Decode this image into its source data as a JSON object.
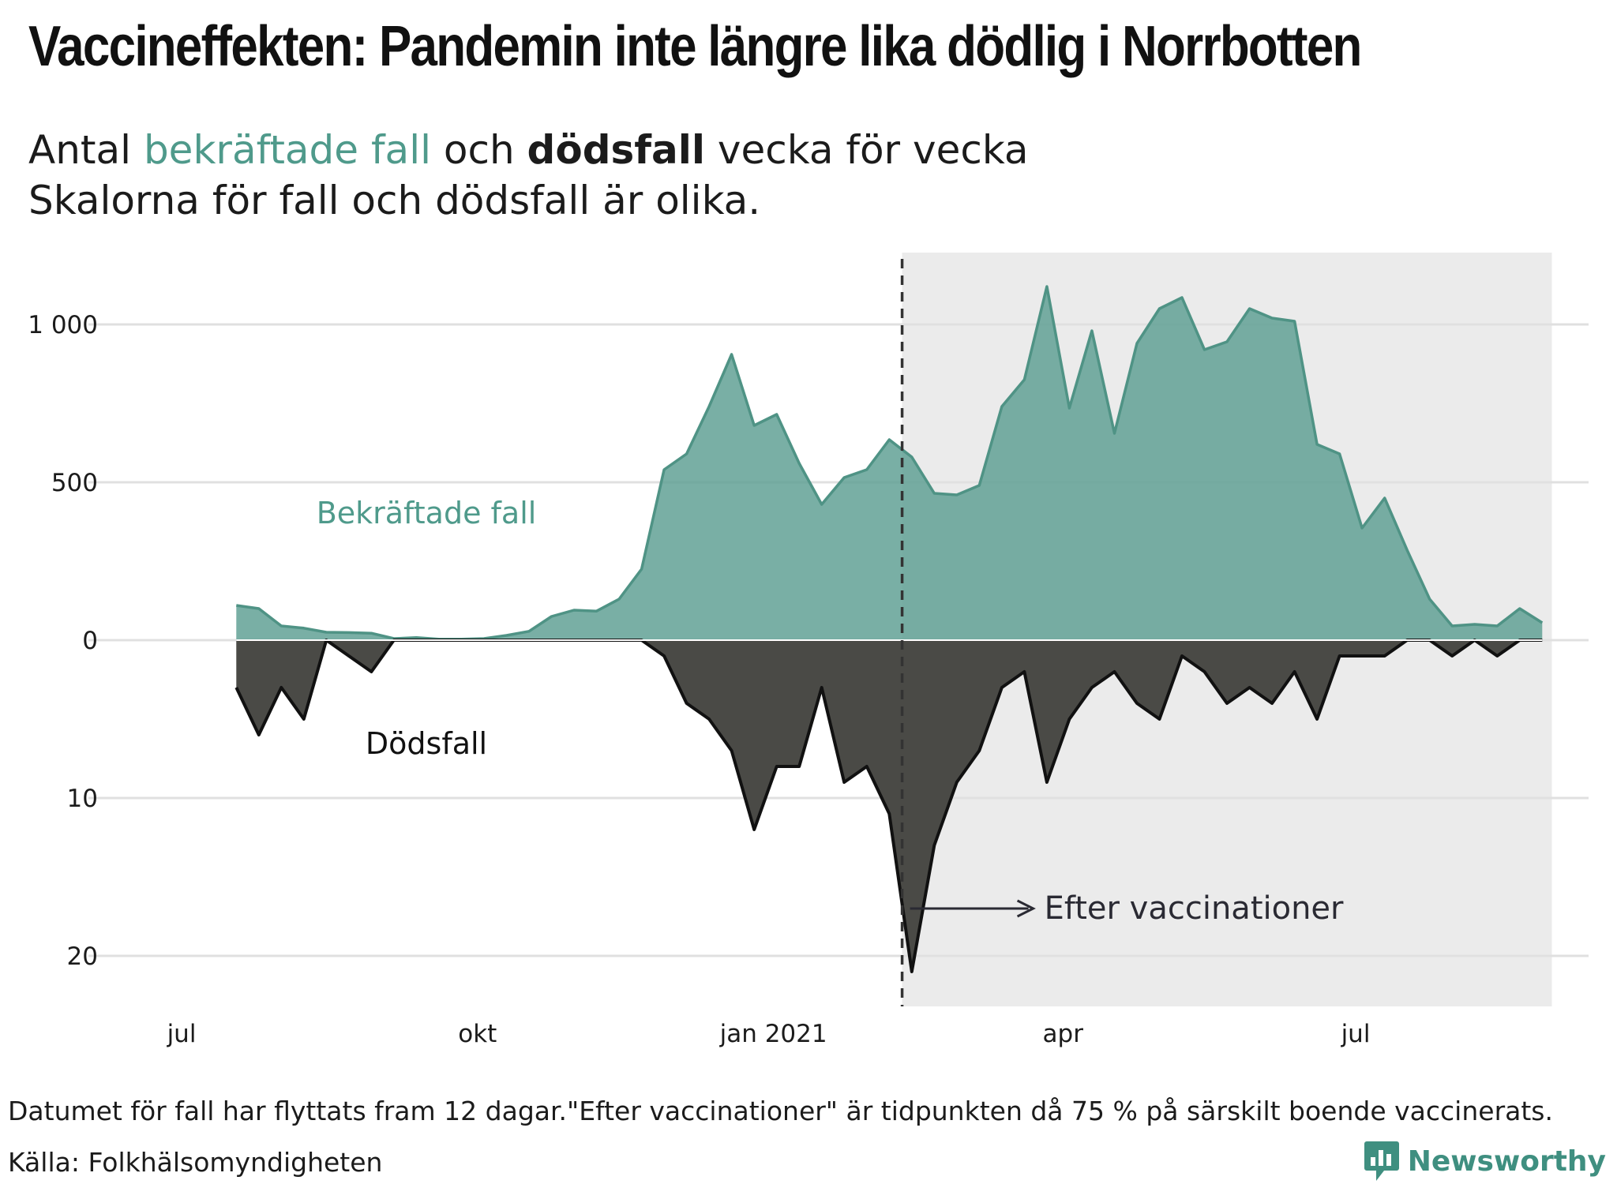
{
  "title": "Vaccineffekten: Pandemin inte längre lika dödlig i Norrbotten",
  "subtitle": {
    "line1": {
      "prefix": "Antal ",
      "cases": "bekräftade fall",
      "middle": " och ",
      "deaths": "dödsfall",
      "suffix": " vecka för vecka"
    },
    "line2": "Skalorna för fall och dödsfall är olika."
  },
  "chart_data": {
    "type": "area",
    "x_axis": {
      "type": "date",
      "ticks": [
        {
          "date": "2020-07-01",
          "label": "jul"
        },
        {
          "date": "2020-10-01",
          "label": "okt"
        },
        {
          "date": "2021-01-01",
          "label": "jan 2021"
        },
        {
          "date": "2021-04-01",
          "label": "apr"
        },
        {
          "date": "2021-07-01",
          "label": "jul"
        }
      ]
    },
    "cases_axis": {
      "ticks": [
        0,
        500,
        1000
      ],
      "tick_labels": [
        "0",
        "500",
        "1 000"
      ],
      "range": [
        0,
        1200
      ]
    },
    "deaths_axis": {
      "ticks": [
        10,
        20
      ],
      "tick_labels": [
        "10",
        "20"
      ],
      "range": [
        0,
        23
      ],
      "direction": "downward"
    },
    "grid": true,
    "series": [
      {
        "name": "Bekräftade fall",
        "color": "#5b9e91",
        "values": [
          [
            "2020-07-18",
            110
          ],
          [
            "2020-07-25",
            100
          ],
          [
            "2020-08-01",
            45
          ],
          [
            "2020-08-08",
            38
          ],
          [
            "2020-08-15",
            25
          ],
          [
            "2020-08-22",
            24
          ],
          [
            "2020-08-29",
            22
          ],
          [
            "2020-09-05",
            5
          ],
          [
            "2020-09-12",
            8
          ],
          [
            "2020-09-19",
            3
          ],
          [
            "2020-09-26",
            3
          ],
          [
            "2020-10-03",
            5
          ],
          [
            "2020-10-10",
            15
          ],
          [
            "2020-10-17",
            28
          ],
          [
            "2020-10-24",
            75
          ],
          [
            "2020-10-31",
            95
          ],
          [
            "2020-11-07",
            92
          ],
          [
            "2020-11-14",
            130
          ],
          [
            "2020-11-21",
            225
          ],
          [
            "2020-11-28",
            540
          ],
          [
            "2020-12-05",
            590
          ],
          [
            "2020-12-12",
            740
          ],
          [
            "2020-12-19",
            905
          ],
          [
            "2020-12-26",
            680
          ],
          [
            "2021-01-02",
            715
          ],
          [
            "2021-01-09",
            560
          ],
          [
            "2021-01-16",
            430
          ],
          [
            "2021-01-23",
            515
          ],
          [
            "2021-01-30",
            540
          ],
          [
            "2021-02-06",
            635
          ],
          [
            "2021-02-13",
            580
          ],
          [
            "2021-02-20",
            465
          ],
          [
            "2021-02-27",
            460
          ],
          [
            "2021-03-06",
            490
          ],
          [
            "2021-03-13",
            740
          ],
          [
            "2021-03-20",
            825
          ],
          [
            "2021-03-27",
            1120
          ],
          [
            "2021-04-03",
            735
          ],
          [
            "2021-04-10",
            980
          ],
          [
            "2021-04-17",
            655
          ],
          [
            "2021-04-24",
            940
          ],
          [
            "2021-05-01",
            1050
          ],
          [
            "2021-05-08",
            1085
          ],
          [
            "2021-05-15",
            920
          ],
          [
            "2021-05-22",
            945
          ],
          [
            "2021-05-29",
            1050
          ],
          [
            "2021-06-05",
            1020
          ],
          [
            "2021-06-12",
            1010
          ],
          [
            "2021-06-19",
            620
          ],
          [
            "2021-06-26",
            590
          ],
          [
            "2021-07-03",
            355
          ],
          [
            "2021-07-10",
            450
          ],
          [
            "2021-07-17",
            285
          ],
          [
            "2021-07-24",
            130
          ],
          [
            "2021-07-31",
            45
          ],
          [
            "2021-08-07",
            50
          ],
          [
            "2021-08-14",
            45
          ],
          [
            "2021-08-21",
            100
          ],
          [
            "2021-08-28",
            55
          ]
        ]
      },
      {
        "name": "Dödsfall",
        "color": "#4a4a46",
        "values": [
          [
            "2020-07-18",
            3
          ],
          [
            "2020-07-25",
            6
          ],
          [
            "2020-08-01",
            3
          ],
          [
            "2020-08-08",
            5
          ],
          [
            "2020-08-15",
            0
          ],
          [
            "2020-08-22",
            1
          ],
          [
            "2020-08-29",
            2
          ],
          [
            "2020-09-05",
            0
          ],
          [
            "2020-09-12",
            0
          ],
          [
            "2020-09-19",
            0
          ],
          [
            "2020-09-26",
            0
          ],
          [
            "2020-10-03",
            0
          ],
          [
            "2020-10-10",
            0
          ],
          [
            "2020-10-17",
            0
          ],
          [
            "2020-10-24",
            0
          ],
          [
            "2020-10-31",
            0
          ],
          [
            "2020-11-07",
            0
          ],
          [
            "2020-11-14",
            0
          ],
          [
            "2020-11-21",
            0
          ],
          [
            "2020-11-28",
            1
          ],
          [
            "2020-12-05",
            4
          ],
          [
            "2020-12-12",
            5
          ],
          [
            "2020-12-19",
            7
          ],
          [
            "2020-12-26",
            12
          ],
          [
            "2021-01-02",
            8
          ],
          [
            "2021-01-09",
            8
          ],
          [
            "2021-01-16",
            3
          ],
          [
            "2021-01-23",
            9
          ],
          [
            "2021-01-30",
            8
          ],
          [
            "2021-02-06",
            11
          ],
          [
            "2021-02-13",
            21
          ],
          [
            "2021-02-20",
            13
          ],
          [
            "2021-02-27",
            9
          ],
          [
            "2021-03-06",
            7
          ],
          [
            "2021-03-13",
            3
          ],
          [
            "2021-03-20",
            2
          ],
          [
            "2021-03-27",
            9
          ],
          [
            "2021-04-03",
            5
          ],
          [
            "2021-04-10",
            3
          ],
          [
            "2021-04-17",
            2
          ],
          [
            "2021-04-24",
            4
          ],
          [
            "2021-05-01",
            5
          ],
          [
            "2021-05-08",
            1
          ],
          [
            "2021-05-15",
            2
          ],
          [
            "2021-05-22",
            4
          ],
          [
            "2021-05-29",
            3
          ],
          [
            "2021-06-05",
            4
          ],
          [
            "2021-06-12",
            2
          ],
          [
            "2021-06-19",
            5
          ],
          [
            "2021-06-26",
            1
          ],
          [
            "2021-07-03",
            1
          ],
          [
            "2021-07-10",
            1
          ],
          [
            "2021-07-17",
            0
          ],
          [
            "2021-07-24",
            0
          ],
          [
            "2021-07-31",
            1
          ],
          [
            "2021-08-07",
            0
          ],
          [
            "2021-08-14",
            1
          ],
          [
            "2021-08-21",
            0
          ],
          [
            "2021-08-28",
            0
          ]
        ]
      }
    ],
    "annotations": [
      {
        "type": "vertical-line",
        "date": "2021-02-10",
        "style": "dashed"
      },
      {
        "type": "shaded-region",
        "from": "2021-02-10",
        "to": "2021-08-31",
        "color": "#ebebeb"
      },
      {
        "type": "arrow-label",
        "text": "Efter vaccinationer",
        "anchor_date": "2021-02-10",
        "deaths_value": 17
      }
    ]
  },
  "footnote": "Datumet för fall har flyttats fram 12 dagar.\"Efter vaccinationer\" är tidpunkten då 75 % på särskilt boende vaccinerats.",
  "source": "Källa: Folkhälsomyndigheten",
  "brand": {
    "name": "Newsworthy",
    "icon": "newsworthy-logo-icon",
    "color": "#3f8f80"
  }
}
